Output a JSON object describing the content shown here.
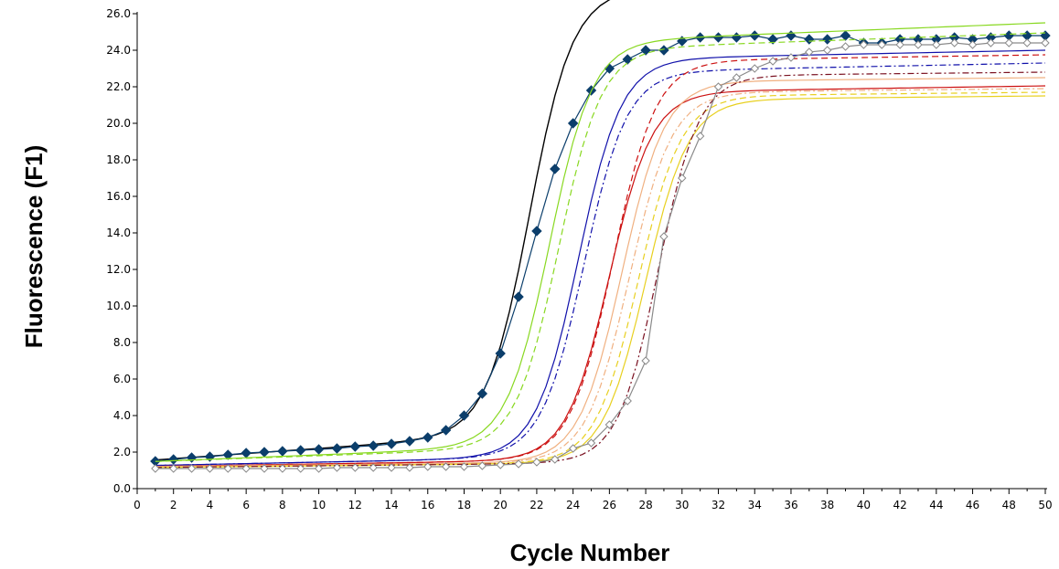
{
  "chart_data": {
    "type": "line",
    "title": "",
    "xlabel": "Cycle Number",
    "ylabel": "Fluorescence (F1)",
    "xlim": [
      0,
      50
    ],
    "ylim": [
      0,
      26
    ],
    "x_ticks": [
      0,
      2,
      4,
      6,
      8,
      10,
      12,
      14,
      16,
      18,
      20,
      22,
      24,
      26,
      28,
      30,
      32,
      34,
      36,
      38,
      40,
      42,
      44,
      46,
      48,
      50
    ],
    "y_ticks": [
      "0.0",
      "2.0",
      "4.0",
      "6.0",
      "8.0",
      "10.0",
      "12.0",
      "14.0",
      "16.0",
      "18.0",
      "20.0",
      "22.0",
      "24.0",
      "26.0"
    ],
    "grid": false,
    "legend": "none",
    "series": [
      {
        "color": "#000000",
        "style": "solid",
        "marker": "none",
        "base": 1.5,
        "slope": 0.07,
        "top": 25.5,
        "mid": 21.6,
        "k": 0.85
      },
      {
        "color": "#0b3e6b",
        "style": "solid",
        "marker": "filled-diamond",
        "x": [
          1,
          2,
          3,
          4,
          5,
          6,
          7,
          8,
          9,
          10,
          11,
          12,
          13,
          14,
          15,
          16,
          17,
          18,
          19,
          20,
          21,
          22,
          23,
          24,
          25,
          26,
          27,
          28,
          29,
          30,
          31,
          32,
          33,
          34,
          35,
          36,
          37,
          38,
          39,
          40,
          41,
          42,
          43,
          44,
          45,
          46,
          47,
          48,
          49,
          50
        ],
        "y": [
          1.5,
          1.6,
          1.7,
          1.75,
          1.85,
          1.95,
          2.0,
          2.05,
          2.1,
          2.15,
          2.2,
          2.3,
          2.35,
          2.45,
          2.6,
          2.8,
          3.2,
          4.0,
          5.2,
          7.4,
          10.5,
          14.1,
          17.5,
          20.0,
          21.8,
          23.0,
          23.5,
          24.0,
          24.0,
          24.5,
          24.7,
          24.7,
          24.7,
          24.8,
          24.6,
          24.8,
          24.6,
          24.6,
          24.8,
          24.4,
          24.4,
          24.6,
          24.6,
          24.6,
          24.7,
          24.6,
          24.7,
          24.8,
          24.8,
          24.8
        ]
      },
      {
        "color": "#88d820",
        "style": "solid",
        "marker": "none",
        "base": 1.45,
        "slope": 0.04,
        "top": 23.5,
        "mid": 22.7,
        "k": 0.85
      },
      {
        "color": "#88d820",
        "style": "dashed",
        "marker": "none",
        "base": 1.45,
        "slope": 0.035,
        "top": 23.2,
        "mid": 23.2,
        "k": 0.85
      },
      {
        "color": "#1010aa",
        "style": "solid",
        "marker": "none",
        "base": 1.25,
        "slope": 0.02,
        "top": 23.0,
        "mid": 24.3,
        "k": 0.85
      },
      {
        "color": "#1010aa",
        "style": "dashdot",
        "marker": "none",
        "base": 1.25,
        "slope": 0.02,
        "top": 22.3,
        "mid": 24.6,
        "k": 0.85
      },
      {
        "color": "#cc1010",
        "style": "solid",
        "marker": "none",
        "base": 1.2,
        "slope": 0.015,
        "top": 21.3,
        "mid": 26.0,
        "k": 0.85
      },
      {
        "color": "#cc1010",
        "style": "dashed",
        "marker": "none",
        "base": 1.2,
        "slope": 0.015,
        "top": 23.0,
        "mid": 26.2,
        "k": 0.85
      },
      {
        "color": "#f0b080",
        "style": "solid",
        "marker": "none",
        "base": 1.2,
        "slope": 0.01,
        "top": 22.0,
        "mid": 26.7,
        "k": 0.85
      },
      {
        "color": "#f0b080",
        "style": "dashdot",
        "marker": "none",
        "base": 1.2,
        "slope": 0.01,
        "top": 21.4,
        "mid": 27.1,
        "k": 0.85
      },
      {
        "color": "#e8d020",
        "style": "dashed",
        "marker": "none",
        "base": 1.15,
        "slope": 0.01,
        "top": 21.2,
        "mid": 27.6,
        "k": 0.85
      },
      {
        "color": "#e8d020",
        "style": "solid",
        "marker": "none",
        "base": 1.15,
        "slope": 0.01,
        "top": 21.0,
        "mid": 28.0,
        "k": 0.85
      },
      {
        "color": "#7a1020",
        "style": "dashdot",
        "marker": "none",
        "base": 1.15,
        "slope": 0.01,
        "top": 22.3,
        "mid": 28.7,
        "k": 0.9
      },
      {
        "color": "#8a8a8a",
        "style": "solid",
        "marker": "open-diamond",
        "x": [
          1,
          2,
          3,
          4,
          5,
          6,
          7,
          8,
          9,
          10,
          11,
          12,
          13,
          14,
          15,
          16,
          17,
          18,
          19,
          20,
          21,
          22,
          23,
          24,
          25,
          26,
          27,
          28,
          29,
          30,
          31,
          32,
          33,
          34,
          35,
          36,
          37,
          38,
          39,
          40,
          41,
          42,
          43,
          44,
          45,
          46,
          47,
          48,
          49,
          50
        ],
        "y": [
          1.1,
          1.1,
          1.1,
          1.1,
          1.1,
          1.1,
          1.1,
          1.1,
          1.1,
          1.1,
          1.15,
          1.15,
          1.15,
          1.15,
          1.15,
          1.2,
          1.2,
          1.2,
          1.25,
          1.3,
          1.35,
          1.45,
          1.6,
          2.2,
          2.5,
          3.5,
          4.8,
          7.0,
          13.8,
          17.0,
          19.3,
          22.0,
          22.5,
          23.0,
          23.4,
          23.6,
          23.9,
          24.0,
          24.2,
          24.3,
          24.3,
          24.3,
          24.3,
          24.3,
          24.4,
          24.3,
          24.4,
          24.4,
          24.4,
          24.4
        ]
      }
    ]
  }
}
